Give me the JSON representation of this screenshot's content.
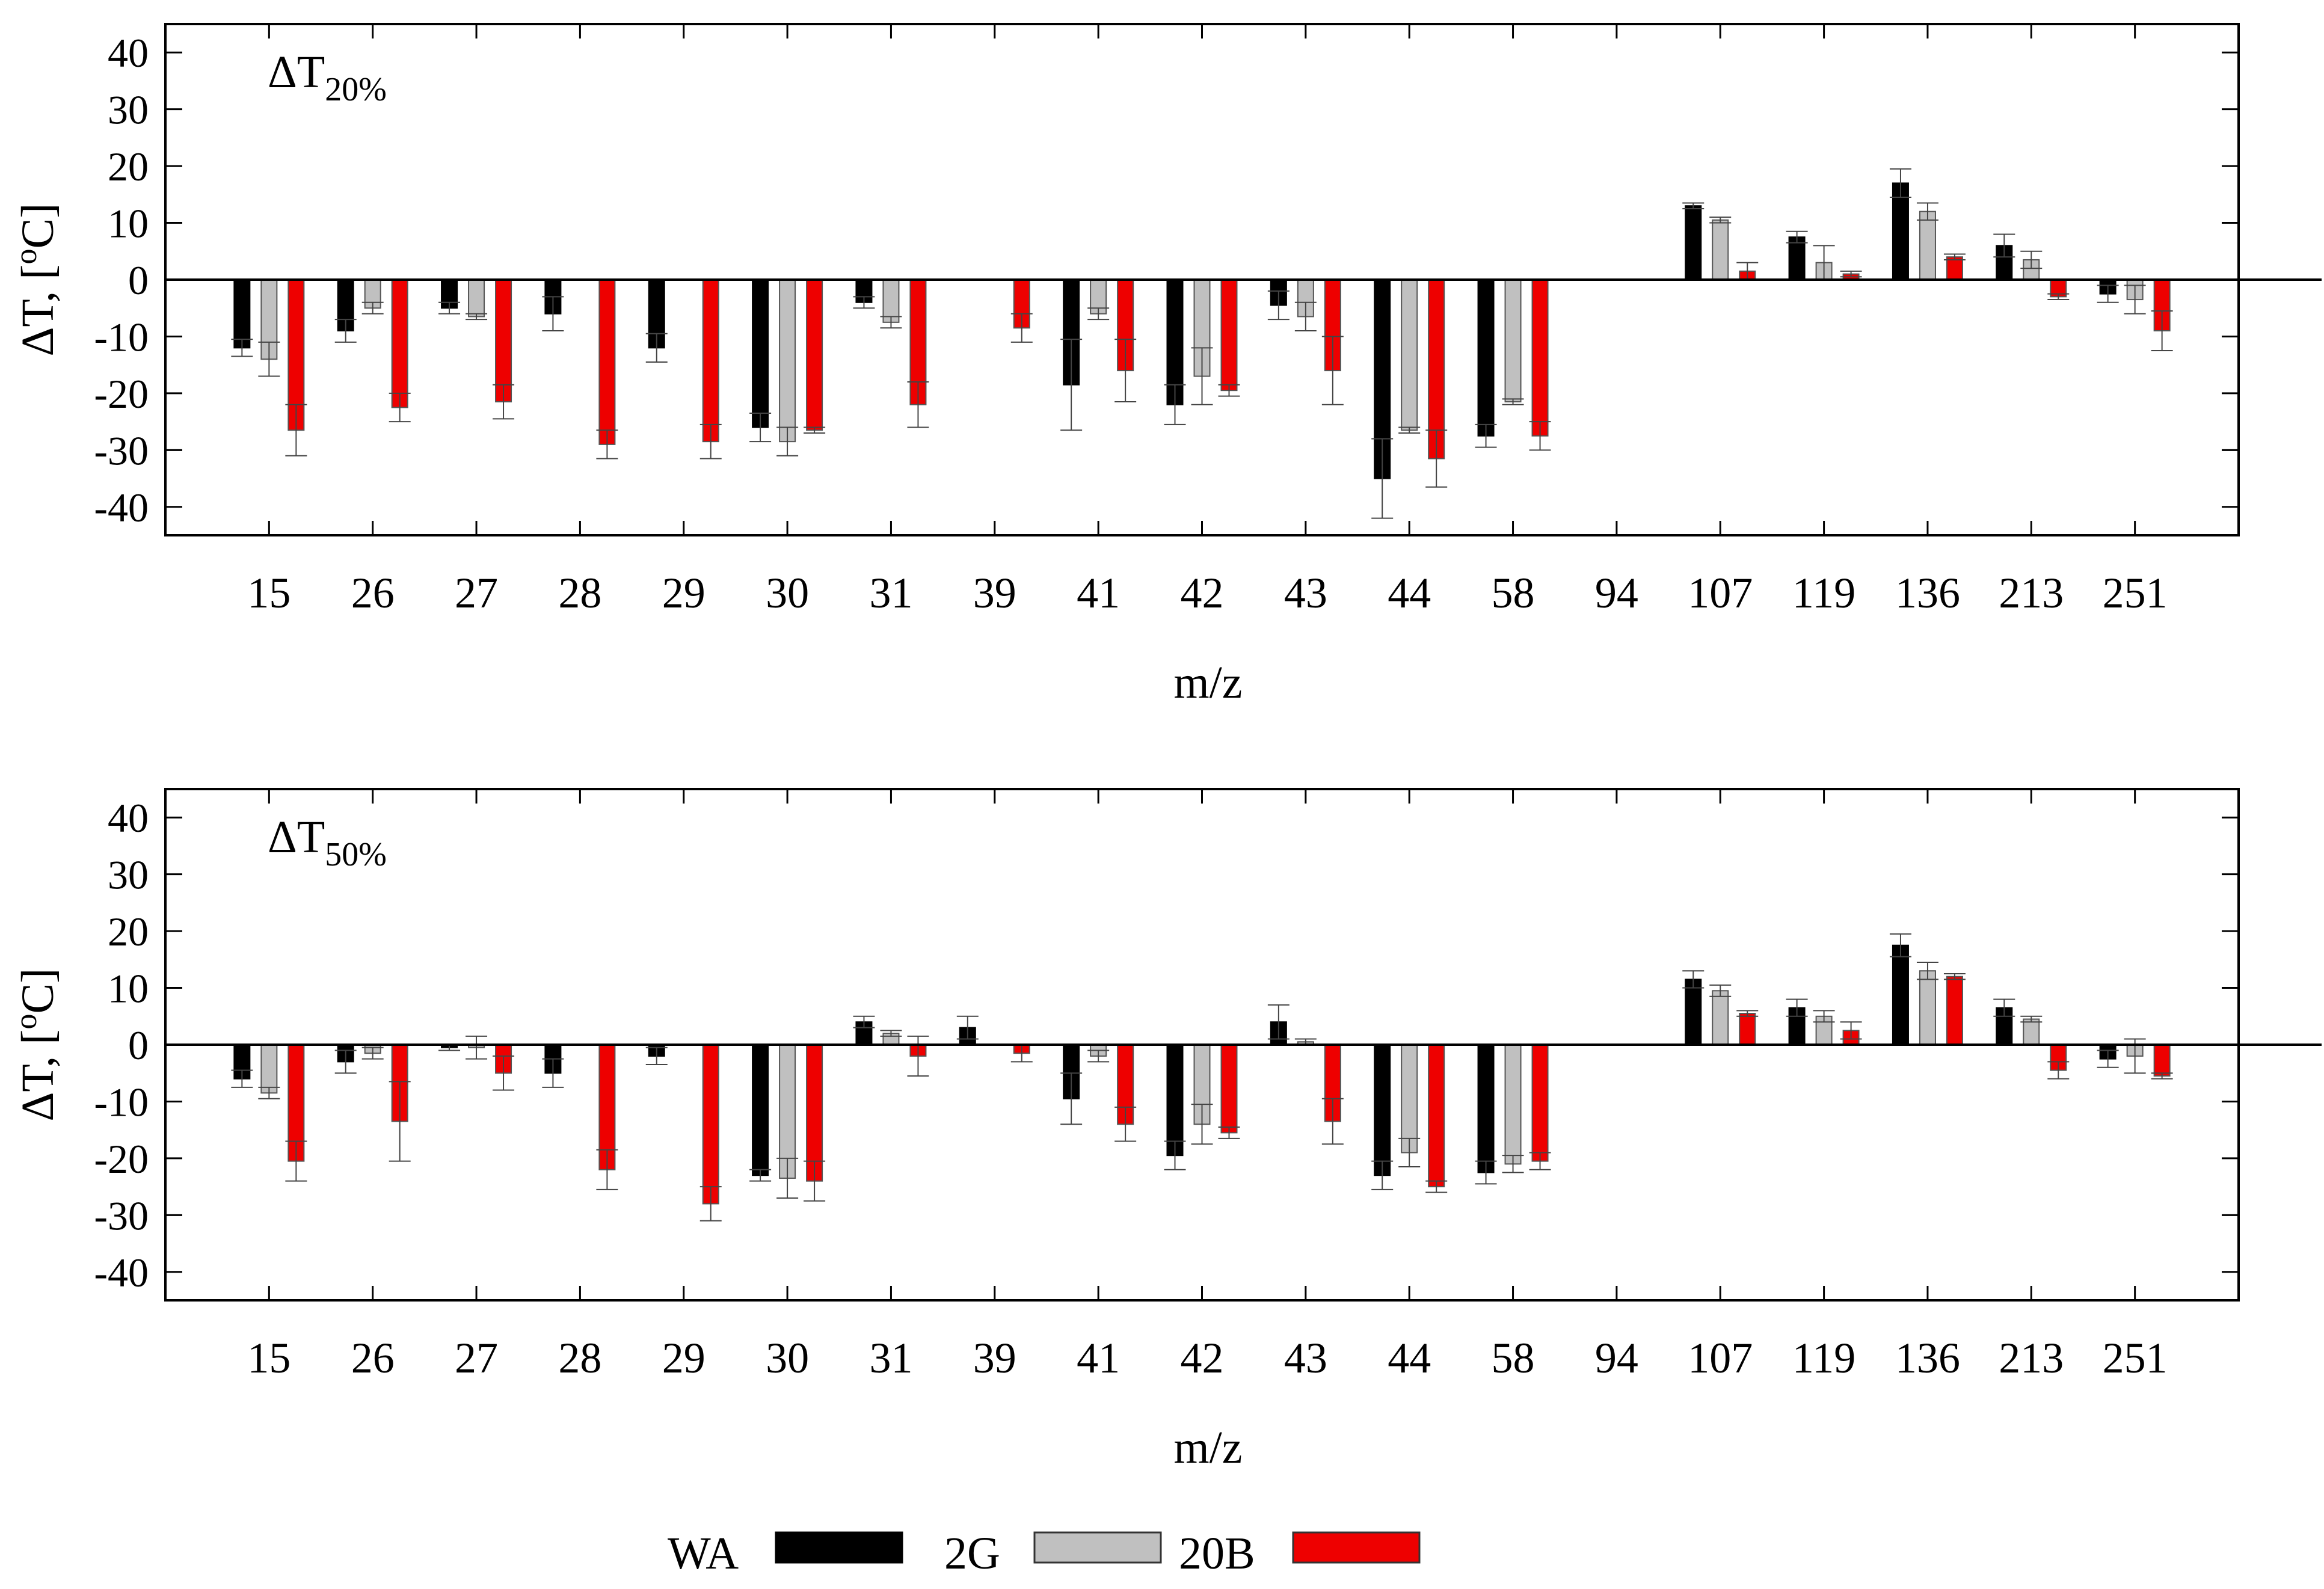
{
  "chart_data": [
    {
      "type": "bar",
      "panel_label": "ΔT",
      "panel_subscript": "20%",
      "xlabel": "m/z",
      "ylabel_main": "ΔT, [",
      "ylabel_sup": "o",
      "ylabel_end": "C]",
      "ylim": [
        -45,
        45
      ],
      "yticks": [
        -40,
        -30,
        -20,
        -10,
        0,
        10,
        20,
        30,
        40
      ],
      "categories": [
        "15",
        "26",
        "27",
        "28",
        "29",
        "30",
        "31",
        "39",
        "41",
        "42",
        "43",
        "44",
        "58",
        "94",
        "107",
        "119",
        "136",
        "213",
        "251"
      ],
      "series": [
        {
          "name": "WA",
          "values": [
            -12,
            -9,
            -5,
            -6,
            -12,
            -26,
            -4,
            0,
            -18.5,
            -22,
            -4.5,
            -35,
            -27.5,
            0,
            13,
            7.5,
            17,
            6,
            -2.5
          ],
          "errors": [
            1.5,
            2,
            1,
            3,
            2.5,
            2.5,
            1,
            2,
            8,
            3.5,
            2.5,
            7,
            2,
            0,
            0.5,
            1,
            2.5,
            2,
            1.5
          ]
        },
        {
          "name": "2G",
          "values": [
            -14,
            -5,
            -6.5,
            0,
            0,
            -28.5,
            -7.5,
            0,
            -6,
            -17,
            -6.5,
            -26.5,
            -21.5,
            0,
            10.5,
            3,
            12,
            3.5,
            -3.5
          ],
          "errors": [
            3,
            1,
            0.5,
            0,
            0,
            2.5,
            1,
            0,
            1,
            5,
            2.5,
            0.5,
            0.5,
            0,
            0.5,
            3,
            1.5,
            1.5,
            2.5
          ]
        },
        {
          "name": "20B",
          "values": [
            -26.5,
            -22.5,
            -21.5,
            -29,
            -28.5,
            -26.5,
            -22,
            -8.5,
            -16,
            -19.5,
            -16,
            -31.5,
            -27.5,
            0,
            1.5,
            1,
            4,
            -3,
            -9
          ],
          "errors": [
            4.5,
            2.5,
            3,
            2.5,
            3,
            0.5,
            4,
            2.5,
            5.5,
            1,
            6,
            5,
            2.5,
            0,
            1.5,
            0.5,
            0.5,
            0.5,
            3.5
          ]
        }
      ]
    },
    {
      "type": "bar",
      "panel_label": "ΔT",
      "panel_subscript": "50%",
      "xlabel": "m/z",
      "ylabel_main": "ΔT, [",
      "ylabel_sup": "o",
      "ylabel_end": "C]",
      "ylim": [
        -45,
        45
      ],
      "yticks": [
        -40,
        -30,
        -20,
        -10,
        0,
        10,
        20,
        30,
        40
      ],
      "categories": [
        "15",
        "26",
        "27",
        "28",
        "29",
        "30",
        "31",
        "39",
        "41",
        "42",
        "43",
        "44",
        "58",
        "94",
        "107",
        "119",
        "136",
        "213",
        "251"
      ],
      "series": [
        {
          "name": "WA",
          "values": [
            -6,
            -3,
            -0.5,
            -5,
            -2,
            -23,
            4,
            3,
            -9.5,
            -19.5,
            4,
            -23,
            -22.5,
            0,
            11.5,
            6.5,
            17.5,
            6.5,
            -2.5
          ],
          "errors": [
            1.5,
            2,
            0.5,
            2.5,
            1.5,
            1,
            1,
            2,
            4.5,
            2.5,
            3,
            2.5,
            2,
            0,
            1.5,
            1.5,
            2,
            1.5,
            1.5
          ]
        },
        {
          "name": "2G",
          "values": [
            -8.5,
            -1.5,
            -0.5,
            0,
            0,
            -23.5,
            2,
            0,
            -2,
            -14,
            0.5,
            -19,
            -21,
            0,
            9.5,
            5,
            13,
            4.5,
            -2
          ],
          "errors": [
            1,
            1,
            2,
            0,
            0,
            3.5,
            0.5,
            0,
            1,
            3.5,
            0.5,
            2.5,
            1.5,
            0,
            1,
            1,
            1.5,
            0.5,
            3
          ]
        },
        {
          "name": "20B",
          "values": [
            -20.5,
            -13.5,
            -5,
            -22,
            -28,
            -24,
            -2,
            -1.5,
            -14,
            -15.5,
            -13.5,
            -25,
            -20.5,
            0,
            5.5,
            2.5,
            12,
            -4.5,
            -5.5
          ],
          "errors": [
            3.5,
            7,
            3,
            3.5,
            3,
            3.5,
            3.5,
            1.5,
            3,
            1,
            4,
            1,
            1.5,
            0,
            0.5,
            1.5,
            0.5,
            1.5,
            0.5
          ]
        }
      ]
    }
  ],
  "legend": {
    "items": [
      {
        "label": "WA",
        "color": "#000000"
      },
      {
        "label": "2G",
        "color": "#c0c0c0"
      },
      {
        "label": "20B",
        "color": "#ee0000"
      }
    ]
  }
}
